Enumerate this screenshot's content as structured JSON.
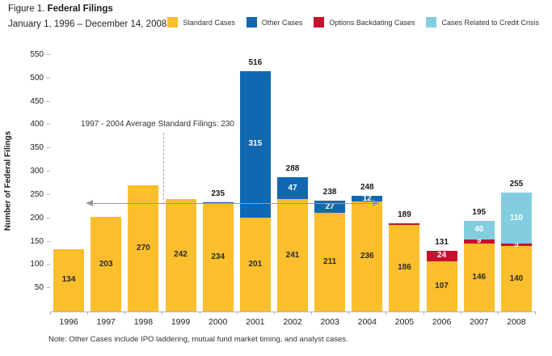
{
  "header": {
    "figure_label": "Figure 1. ",
    "title": "Federal Filings",
    "subtitle": "January 1, 1996 – December 14, 2008"
  },
  "legend": [
    {
      "label": "Standard Cases",
      "color": "#FBBE2C"
    },
    {
      "label": "Other Cases",
      "color": "#1168B1"
    },
    {
      "label": "Options Backdating Cases",
      "color": "#C8102E"
    },
    {
      "label": "Cases Related to Credit Crisis",
      "color": "#82CEE0"
    }
  ],
  "colors": {
    "standard": "#FBBE2C",
    "other": "#1168B1",
    "backdating": "#C8102E",
    "credit": "#82CEE0",
    "label_on_dark": "#ffffff",
    "label_on_yellow": "#2b2b2b",
    "axis": "#b5b5b5",
    "arrow": "#999999"
  },
  "annotation": {
    "text": "1997 - 2004 Average Standard Filings: 230",
    "value": 230
  },
  "note": "Note: Other Cases include IPO laddering, mutual fund market timing, and analyst cases.",
  "y_axis": {
    "label": "Number of Federal Filings",
    "ticks": [
      50,
      100,
      150,
      200,
      250,
      300,
      350,
      400,
      450,
      500,
      550
    ]
  },
  "chart_data": {
    "type": "bar",
    "stacked": true,
    "title": "Figure 1. Federal Filings",
    "subtitle": "January 1, 1996 – December 14, 2008",
    "xlabel": "",
    "ylabel": "Number of Federal Filings",
    "ylim": [
      0,
      550
    ],
    "grid": false,
    "legend_position": "top-right",
    "categories": [
      "1996",
      "1997",
      "1998",
      "1999",
      "2000",
      "2001",
      "2002",
      "2003",
      "2004",
      "2005",
      "2006",
      "2007",
      "2008"
    ],
    "series": [
      {
        "name": "Standard Cases",
        "key": "standard",
        "values": [
          134,
          203,
          270,
          242,
          234,
          201,
          241,
          211,
          236,
          186,
          107,
          146,
          140
        ]
      },
      {
        "name": "Other Cases",
        "key": "other",
        "values": [
          0,
          0,
          0,
          0,
          1,
          315,
          47,
          27,
          12,
          0,
          0,
          0,
          0
        ]
      },
      {
        "name": "Options Backdating Cases",
        "key": "backdating",
        "values": [
          0,
          0,
          0,
          0,
          0,
          0,
          0,
          0,
          0,
          3,
          24,
          9,
          5
        ]
      },
      {
        "name": "Cases Related to Credit Crisis",
        "key": "credit",
        "values": [
          0,
          0,
          0,
          0,
          0,
          0,
          0,
          0,
          0,
          0,
          0,
          40,
          110
        ]
      }
    ],
    "totals": [
      134,
      203,
      270,
      242,
      235,
      516,
      288,
      238,
      248,
      189,
      131,
      195,
      255
    ],
    "show_totals": [
      false,
      false,
      false,
      false,
      true,
      true,
      true,
      true,
      true,
      true,
      true,
      true,
      true
    ],
    "annotation": "1997 - 2004 Average Standard Filings: 230"
  }
}
